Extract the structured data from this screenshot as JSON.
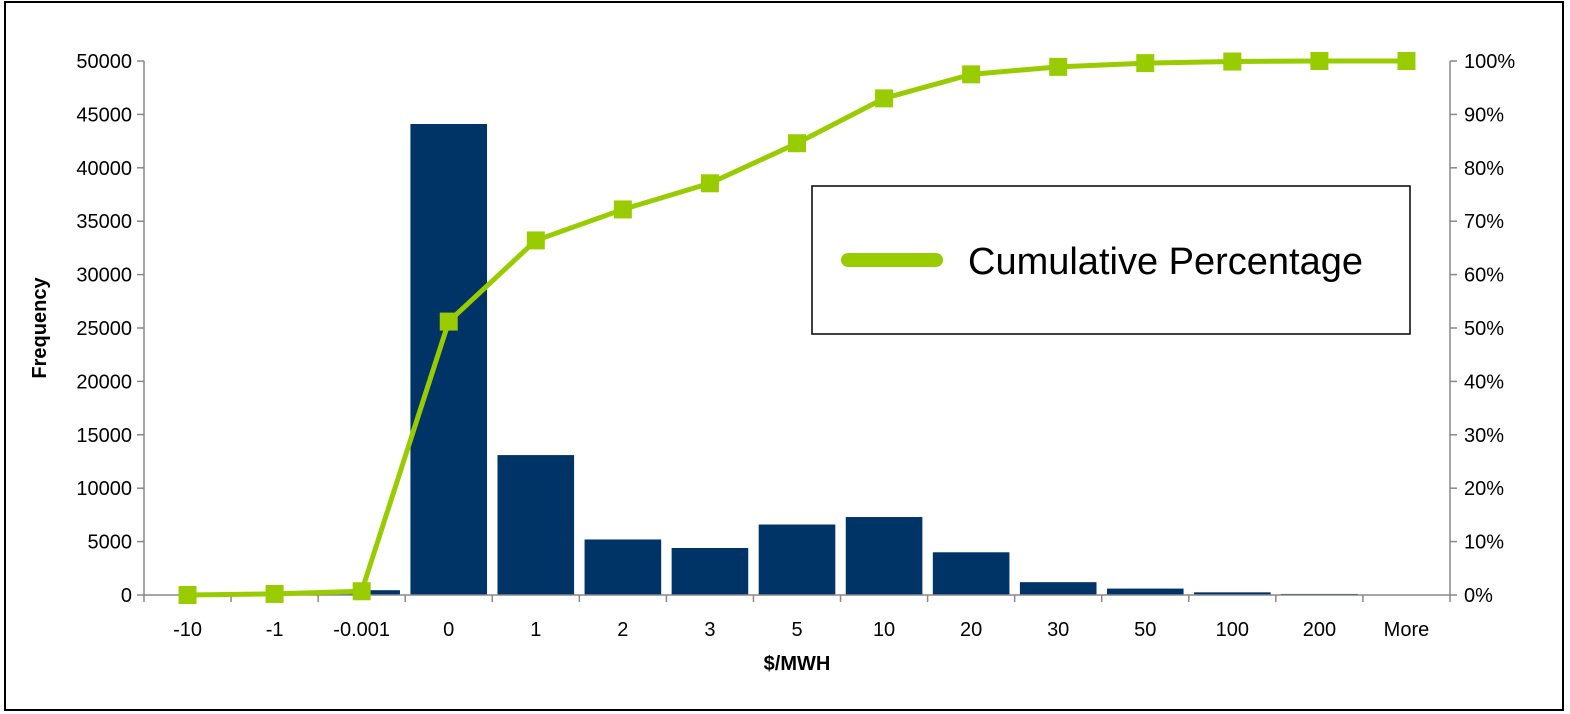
{
  "chart_data": {
    "type": "bar",
    "xlabel": "$/MWH",
    "ylabel": "Frequency",
    "categories": [
      "-10",
      "-1",
      "-0.001",
      "0",
      "1",
      "2",
      "3",
      "5",
      "10",
      "20",
      "30",
      "50",
      "100",
      "200",
      "More"
    ],
    "series": [
      {
        "type": "bar",
        "axis": "left",
        "values": [
          0,
          200,
          450,
          44100,
          13100,
          5200,
          4400,
          6600,
          7300,
          4000,
          1200,
          600,
          250,
          100,
          0
        ]
      },
      {
        "name": "Cumulative Percentage",
        "type": "line",
        "axis": "right",
        "values": [
          0.0,
          0.2,
          0.7,
          51.2,
          66.4,
          72.2,
          77.1,
          84.6,
          93.0,
          97.5,
          98.9,
          99.6,
          99.9,
          100.0,
          100.0
        ]
      }
    ],
    "y_left": {
      "min": 0,
      "max": 50000,
      "step": 5000
    },
    "y_right": {
      "min": 0,
      "max": 100,
      "step": 10,
      "unit": "%"
    },
    "legend": {
      "position": "top-right-inside",
      "entries": [
        "Cumulative Percentage"
      ]
    },
    "grid": false,
    "colors": {
      "bar": "#003366",
      "line": "#99cc00"
    }
  }
}
